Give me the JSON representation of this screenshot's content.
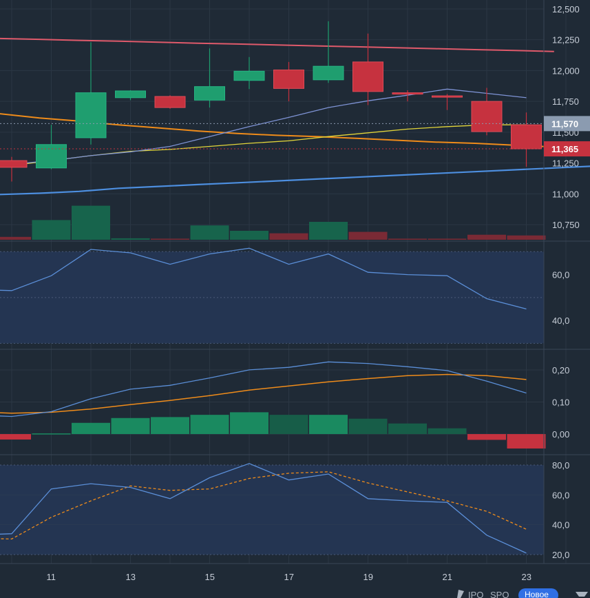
{
  "chart_data": {
    "type": "candlestick",
    "x_labels": [
      "11",
      "13",
      "15",
      "17",
      "19",
      "21",
      "23"
    ],
    "candles": [
      {
        "o": 11270,
        "h": 11300,
        "l": 11100,
        "c": 11215
      },
      {
        "o": 11210,
        "h": 11560,
        "l": 11200,
        "c": 11400
      },
      {
        "o": 11455,
        "h": 12230,
        "l": 11400,
        "c": 11820
      },
      {
        "o": 11780,
        "h": 11840,
        "l": 11760,
        "c": 11835
      },
      {
        "o": 11790,
        "h": 11800,
        "l": 11690,
        "c": 11700
      },
      {
        "o": 11760,
        "h": 12180,
        "l": 11700,
        "c": 11870
      },
      {
        "o": 11920,
        "h": 12110,
        "l": 11850,
        "c": 11995
      },
      {
        "o": 12005,
        "h": 12070,
        "l": 11750,
        "c": 11855
      },
      {
        "o": 11925,
        "h": 12400,
        "l": 11900,
        "c": 12035
      },
      {
        "o": 12070,
        "h": 12300,
        "l": 11720,
        "c": 11830
      },
      {
        "o": 11820,
        "h": 11840,
        "l": 11750,
        "c": 11810
      },
      {
        "o": 11795,
        "h": 11810,
        "l": 11680,
        "c": 11785
      },
      {
        "o": 11750,
        "h": 11860,
        "l": 11475,
        "c": 11505
      },
      {
        "o": 11560,
        "h": 11660,
        "l": 11220,
        "c": 11365
      }
    ],
    "upper_line": [
      12260,
      12253,
      12245,
      12238,
      12230,
      12222,
      12215,
      12208,
      12200,
      12193,
      12185,
      12178,
      12170,
      12163,
      12155
    ],
    "bb_middle_line": [
      11240,
      11270,
      11310,
      11340,
      11385,
      11465,
      11545,
      11620,
      11700,
      11755,
      11800,
      11850,
      11815,
      11780
    ],
    "short_ma_line": [
      11230,
      11270,
      11310,
      11345,
      11360,
      11385,
      11410,
      11430,
      11465,
      11495,
      11525,
      11545,
      11560,
      11560
    ],
    "long_ma_line": [
      11650,
      11615,
      11590,
      11560,
      11535,
      11510,
      11490,
      11475,
      11465,
      11450,
      11435,
      11420,
      11410,
      11395,
      11380
    ],
    "lower_line": [
      10995,
      11005,
      11020,
      11045,
      11060,
      11075,
      11090,
      11105,
      11120,
      11135,
      11150,
      11165,
      11180,
      11195,
      11210,
      11225
    ],
    "volume": [
      0.08,
      0.55,
      0.95,
      0.04,
      0.03,
      0.4,
      0.25,
      0.18,
      0.5,
      0.22,
      0.03,
      0.03,
      0.14,
      0.12
    ],
    "price_axis": {
      "range": [
        10650,
        12550
      ],
      "ticks": [
        "12,500",
        "12,250",
        "12,000",
        "11,750",
        "11,500",
        "11,250",
        "11,000",
        "10,750"
      ],
      "tick_values": [
        12500,
        12250,
        12000,
        11750,
        11500,
        11250,
        11000,
        10750
      ]
    },
    "price_tags": [
      {
        "label": "11,570",
        "value": 11570,
        "color": "#8b9bb0"
      },
      {
        "label": "11,365",
        "value": 11365,
        "color": "#c6323f"
      }
    ],
    "rsi": {
      "values": [
        53.5,
        53,
        59.5,
        71,
        69.5,
        64.5,
        69,
        71.5,
        64.5,
        69,
        61,
        60,
        59.5,
        49.5,
        45
      ],
      "range": [
        28,
        74
      ],
      "band": [
        30,
        70
      ],
      "ticks": [
        "60,0",
        "40,0"
      ],
      "tick_values": [
        60,
        40
      ]
    },
    "macd": {
      "macd_line": [
        0.06,
        0.055,
        0.07,
        0.11,
        0.14,
        0.152,
        0.175,
        0.2,
        0.208,
        0.225,
        0.22,
        0.21,
        0.198,
        0.165,
        0.128
      ],
      "signal_line": [
        0.07,
        0.065,
        0.068,
        0.078,
        0.092,
        0.105,
        0.12,
        0.137,
        0.15,
        0.163,
        0.173,
        0.182,
        0.186,
        0.182,
        0.17
      ],
      "histogram": [
        -0.017,
        0.002,
        0.035,
        0.05,
        0.053,
        0.06,
        0.068,
        0.06,
        0.06,
        0.048,
        0.033,
        0.018,
        -0.018,
        -0.045
      ],
      "range": [
        -0.06,
        0.26
      ],
      "ticks": [
        "0,20",
        "0,10",
        "0,00"
      ],
      "tick_values": [
        0.2,
        0.1,
        0.0
      ]
    },
    "stoch": {
      "k_line": [
        33,
        34,
        64,
        67.5,
        65,
        57.5,
        71.5,
        81,
        70,
        74,
        57.5,
        56,
        55,
        33,
        21
      ],
      "d_line": [
        31,
        30.5,
        45,
        56,
        66,
        63,
        64,
        71,
        74.5,
        75.5,
        68,
        62,
        56,
        49,
        37
      ],
      "range": [
        14,
        86
      ],
      "band": [
        20,
        80
      ],
      "ticks": [
        "80,0",
        "60,0",
        "40,0",
        "20,0"
      ],
      "tick_values": [
        80,
        60,
        40,
        20
      ]
    },
    "colors": {
      "up": "#1f9e6f",
      "down": "#c6323f",
      "upper": "#e05a6b",
      "long_ma": "#f08c1a",
      "short_ma": "#e3d63a",
      "lower": "#4d8fe0",
      "bb_mid": "#7f94d6",
      "osc": "#5b8fd8",
      "signal": "#f08c1a"
    }
  },
  "footer": {
    "link1": "IPO",
    "link2": "SPO",
    "badge": "Новое"
  }
}
